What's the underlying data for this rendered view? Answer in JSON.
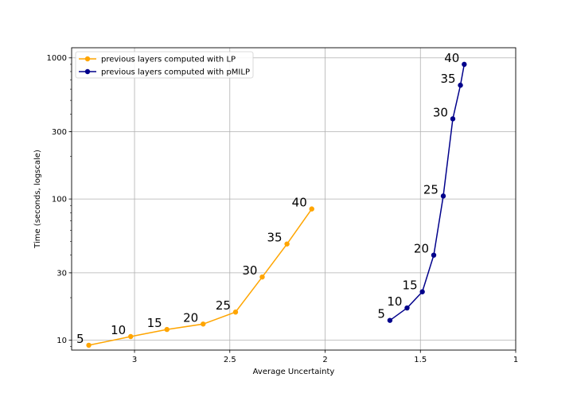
{
  "chart_data": {
    "type": "line",
    "title": "",
    "xlabel": "Average Uncertainty",
    "ylabel": "Time (seconds, logscale)",
    "x_inverted": true,
    "xlim": [
      3.33,
      1.0
    ],
    "ylim": [
      8.5,
      1180
    ],
    "y_scale": "log",
    "x_ticks": [
      3,
      2.5,
      2,
      1.5,
      1
    ],
    "x_tick_labels": [
      "3",
      "2.5",
      "2",
      "1.5",
      "1"
    ],
    "y_ticks": [
      10,
      30,
      100,
      300,
      1000
    ],
    "y_tick_labels": [
      "10",
      "30",
      "100",
      "300",
      "1000"
    ],
    "grid": true,
    "legend_position": "top-left",
    "series": [
      {
        "name": "previous layers computed with LP",
        "color": "#FFA500",
        "x": [
          3.24,
          3.02,
          2.83,
          2.64,
          2.47,
          2.33,
          2.2,
          2.07
        ],
        "y": [
          9.2,
          10.6,
          11.9,
          13.0,
          15.8,
          28.0,
          48.0,
          85.0
        ],
        "point_labels": [
          "5",
          "10",
          "15",
          "20",
          "25",
          "30",
          "35",
          "40"
        ]
      },
      {
        "name": "previous layers computed with pMILP",
        "color": "#00008B",
        "x": [
          1.66,
          1.57,
          1.49,
          1.43,
          1.38,
          1.33,
          1.29,
          1.27
        ],
        "y": [
          13.8,
          16.9,
          22.0,
          40.0,
          105.0,
          370.0,
          640.0,
          900.0
        ],
        "point_labels": [
          "5",
          "10",
          "15",
          "20",
          "25",
          "30",
          "35",
          "40"
        ]
      }
    ]
  }
}
